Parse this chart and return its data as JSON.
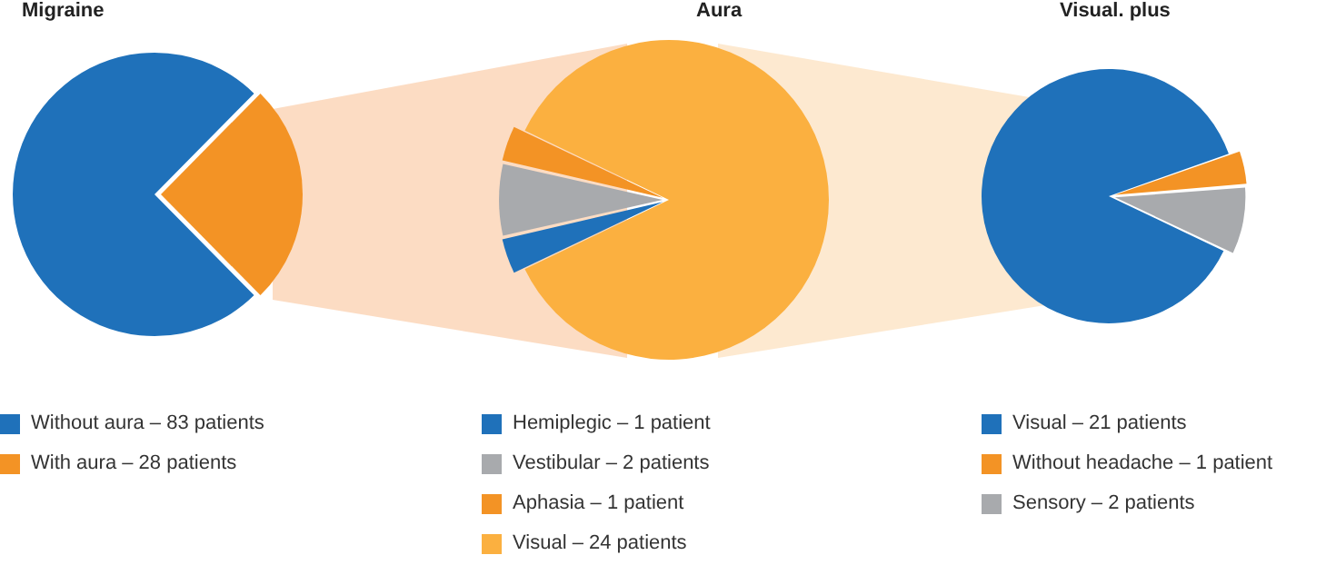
{
  "chart_data": [
    {
      "type": "pie",
      "title": "Migraine",
      "categories": [
        "Without aura",
        "With aura"
      ],
      "values": [
        83,
        28
      ],
      "value_labels": [
        "83 patients",
        "28 patients"
      ],
      "colors": [
        "#1f71ba",
        "#f39325"
      ],
      "legend": "bottom"
    },
    {
      "type": "pie",
      "title": "Aura",
      "categories": [
        "Hemiplegic",
        "Vestibular",
        "Aphasia",
        "Visual"
      ],
      "values": [
        1,
        2,
        1,
        24
      ],
      "value_labels": [
        "1 patient",
        "2 patients",
        "1 patient",
        "24 patients"
      ],
      "colors": [
        "#1f71ba",
        "#a8aaad",
        "#f39325",
        "#fbb040"
      ],
      "legend": "bottom"
    },
    {
      "type": "pie",
      "title": "Visual. plus",
      "categories": [
        "Visual",
        "Without headache",
        "Sensory"
      ],
      "values": [
        21,
        1,
        2
      ],
      "value_labels": [
        "21 patients",
        "1 patient",
        "2 patients"
      ],
      "colors": [
        "#1f71ba",
        "#f39325",
        "#a8aaad"
      ],
      "legend": "bottom"
    }
  ]
}
